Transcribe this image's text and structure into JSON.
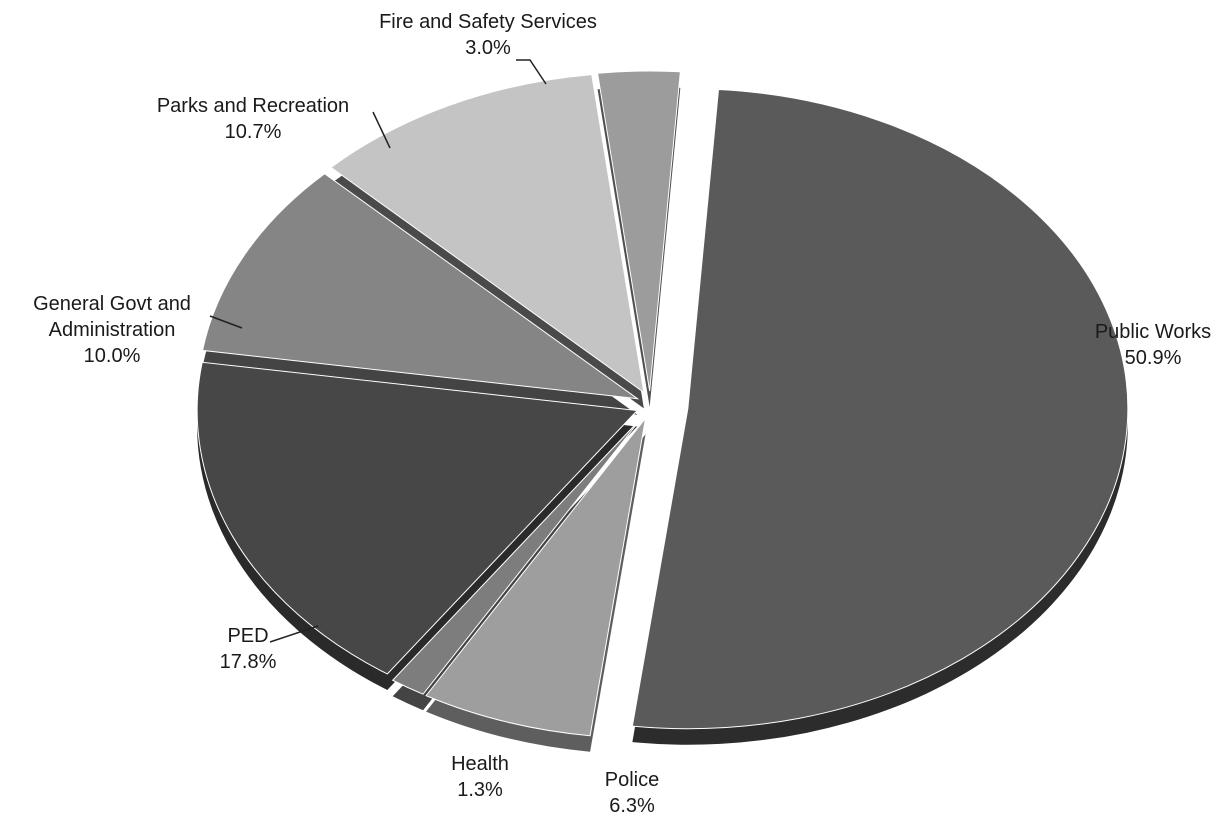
{
  "chart_data": {
    "type": "pie",
    "style": "exploded-3d",
    "title": "",
    "slices": [
      {
        "label": "Public Works",
        "value": 50.9,
        "display": "50.9%",
        "color": "#5a5a5a",
        "side": "#2c2c2c"
      },
      {
        "label": "Police",
        "value": 6.3,
        "display": "6.3%",
        "color": "#9e9e9e",
        "side": "#5e5e5e"
      },
      {
        "label": "Health",
        "value": 1.3,
        "display": "1.3%",
        "color": "#7d7d7d",
        "side": "#444444"
      },
      {
        "label": "PED",
        "value": 17.8,
        "display": "17.8%",
        "color": "#474747",
        "side": "#2a2a2a"
      },
      {
        "label": "General Govt and Administration",
        "label_lines": [
          "General Govt and",
          "Administration"
        ],
        "value": 10.0,
        "display": "10.0%",
        "color": "#858585",
        "side": "#444444"
      },
      {
        "label": "Parks and Recreation",
        "value": 10.7,
        "display": "10.7%",
        "color": "#c4c4c4",
        "side": "#4a4a4a"
      },
      {
        "label": "Fire and Safety Services",
        "value": 3.0,
        "display": "3.0%",
        "color": "#9c9c9c",
        "side": "#505050"
      }
    ]
  }
}
